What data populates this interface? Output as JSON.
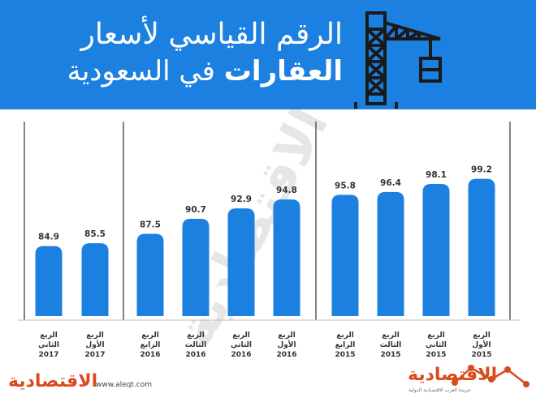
{
  "title": {
    "line1": "الرقم القياسي لأسعار",
    "line2_bold": "العقارات",
    "line2_normal": "في السعودية"
  },
  "colors": {
    "header": "#1c80e0",
    "bar": "#1c80e0",
    "value_text": "#333333",
    "logo": "#d94a1e",
    "divider": "#333333"
  },
  "chart_data": {
    "type": "bar",
    "categories": [
      [
        "الربع",
        "الثاني",
        "2017"
      ],
      [
        "الربع",
        "الأول",
        "2017"
      ],
      [
        "الربع",
        "الرابع",
        "2016"
      ],
      [
        "الربع",
        "الثالث",
        "2016"
      ],
      [
        "الربع",
        "الثاني",
        "2016"
      ],
      [
        "الربع",
        "الأول",
        "2016"
      ],
      [
        "الربع",
        "الرابع",
        "2015"
      ],
      [
        "الربع",
        "الثالث",
        "2015"
      ],
      [
        "الربع",
        "الثاني",
        "2015"
      ],
      [
        "الربع",
        "الأول",
        "2015"
      ]
    ],
    "values": [
      84.9,
      85.5,
      87.5,
      90.7,
      92.9,
      94.8,
      95.8,
      96.4,
      98.1,
      99.2
    ],
    "value_labels": [
      "84.9",
      "85.5",
      "87.5",
      "90.7",
      "92.9",
      "94.8",
      "95.8",
      "96.4",
      "98.1",
      "99.2"
    ],
    "year_groups": [
      "2017",
      "2016",
      "2015"
    ],
    "title": "الرقم القياسي لأسعار العقارات في السعودية",
    "xlabel": "",
    "ylabel": "",
    "ylim": [
      70,
      100
    ],
    "grid": false,
    "legend": "none"
  },
  "footer": {
    "url": "www.aleqt.com",
    "logo_text": "الاقتصادية",
    "logo_subtitle": "جريدة العرب الاقتصادية الدولية"
  },
  "watermark": "الاقتصادية"
}
